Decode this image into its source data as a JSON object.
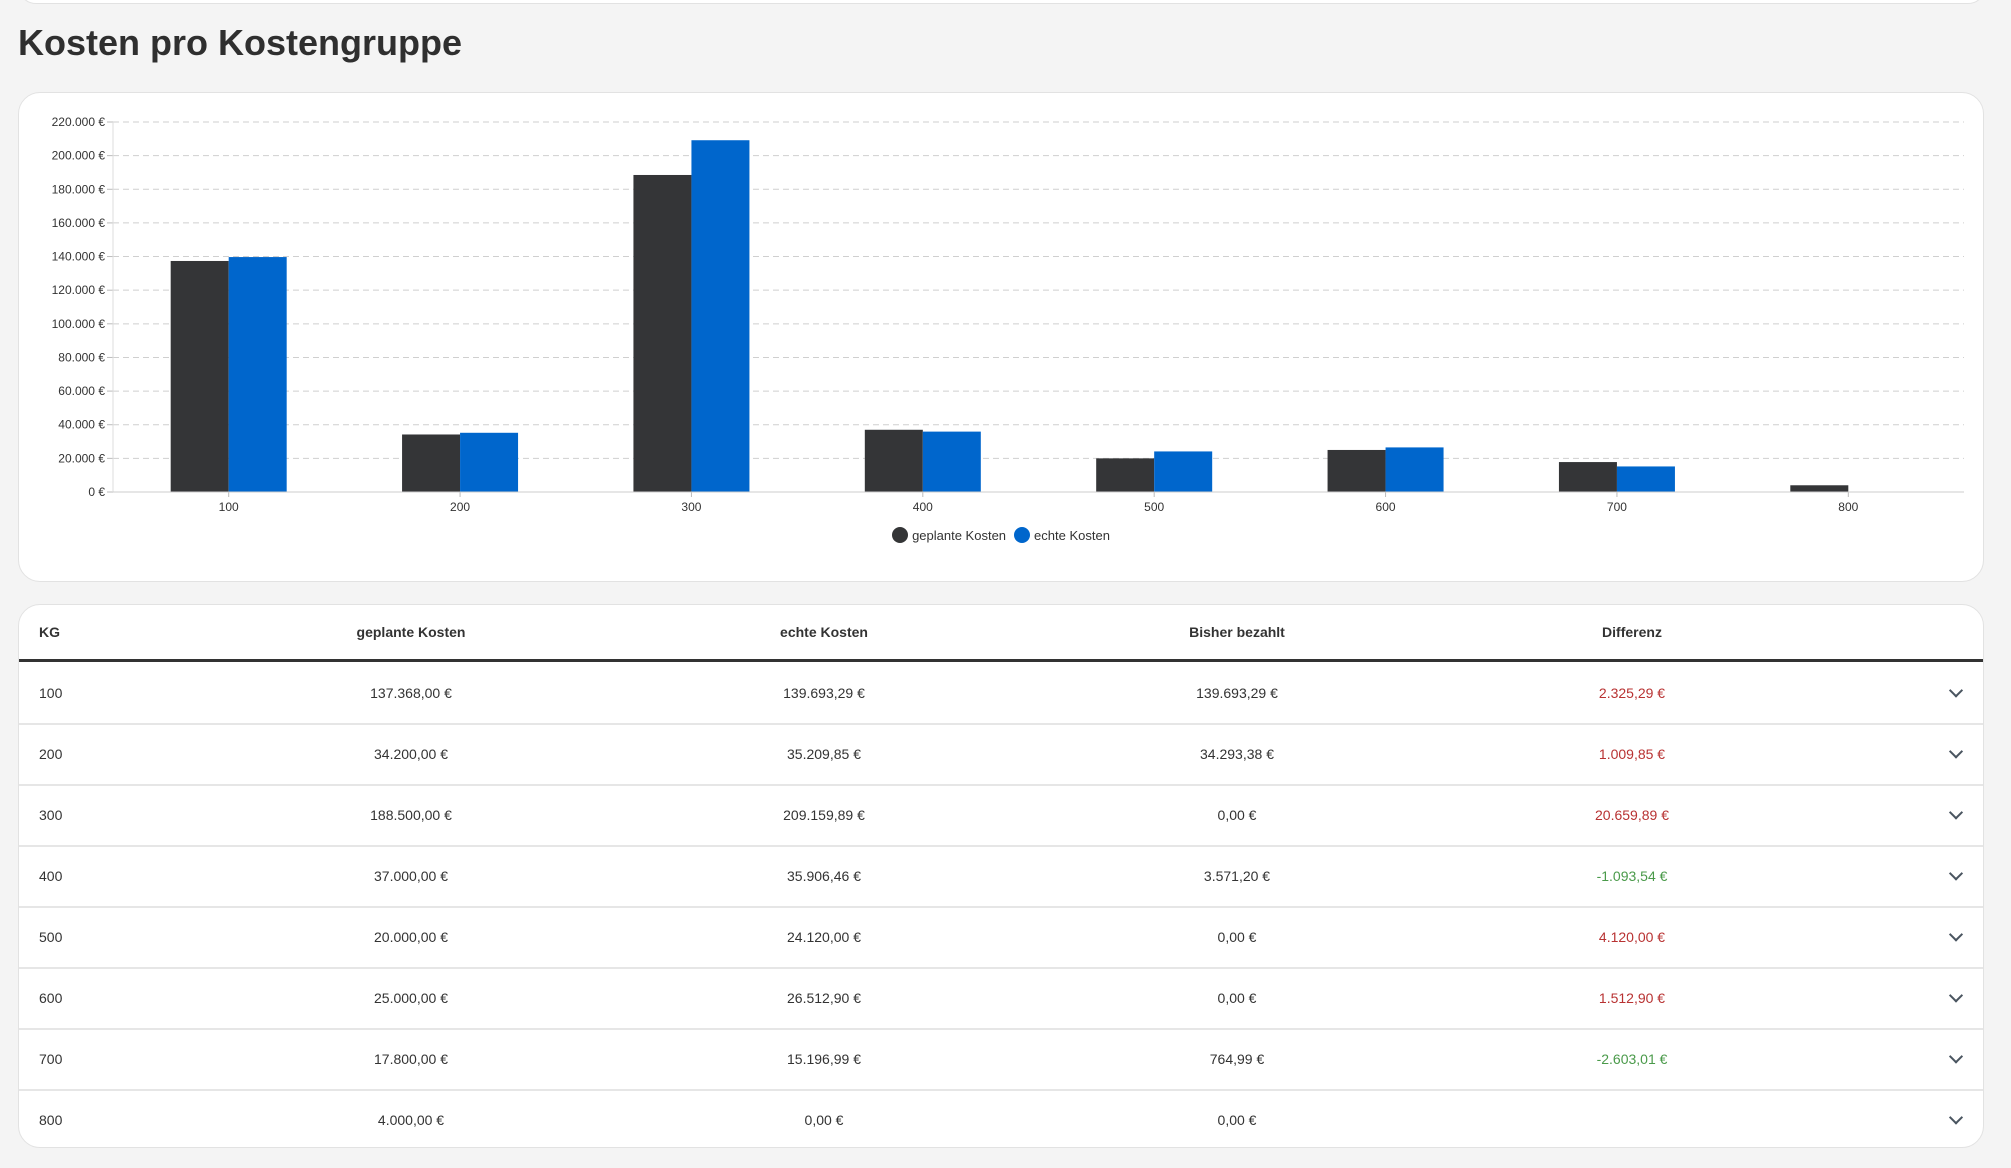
{
  "title": "Kosten pro Kostengruppe",
  "chart_data": {
    "type": "bar",
    "title": "",
    "xlabel": "",
    "ylabel": "",
    "categories": [
      "100",
      "200",
      "300",
      "400",
      "500",
      "600",
      "700",
      "800"
    ],
    "series": [
      {
        "name": "geplante Kosten",
        "color": "#343537",
        "values": [
          137368,
          34200,
          188500,
          37000,
          20000,
          25000,
          17800,
          4000
        ]
      },
      {
        "name": "echte Kosten",
        "color": "#0066cc",
        "values": [
          139693.29,
          35209.85,
          209159.89,
          35906.46,
          24120,
          26512.9,
          15196.99,
          0
        ]
      }
    ],
    "ylim": [
      0,
      220000
    ],
    "yticks": [
      0,
      20000,
      40000,
      60000,
      80000,
      100000,
      120000,
      140000,
      160000,
      180000,
      200000,
      220000
    ],
    "ytick_labels": [
      "0 €",
      "20.000 €",
      "40.000 €",
      "60.000 €",
      "80.000 €",
      "100.000 €",
      "120.000 €",
      "140.000 €",
      "160.000 €",
      "180.000 €",
      "200.000 €",
      "220.000 €"
    ],
    "grid": true,
    "legend": "bottom-center"
  },
  "table": {
    "headers": [
      "KG",
      "geplante Kosten",
      "echte Kosten",
      "Bisher bezahlt",
      "Differenz"
    ],
    "rows": [
      {
        "kg": "100",
        "geplant": "137.368,00 €",
        "echt": "139.693,29 €",
        "bezahlt": "139.693,29 €",
        "differenz": "2.325,29 €",
        "sign": "pos"
      },
      {
        "kg": "200",
        "geplant": "34.200,00 €",
        "echt": "35.209,85 €",
        "bezahlt": "34.293,38 €",
        "differenz": "1.009,85 €",
        "sign": "pos"
      },
      {
        "kg": "300",
        "geplant": "188.500,00 €",
        "echt": "209.159,89 €",
        "bezahlt": "0,00 €",
        "differenz": "20.659,89 €",
        "sign": "pos"
      },
      {
        "kg": "400",
        "geplant": "37.000,00 €",
        "echt": "35.906,46 €",
        "bezahlt": "3.571,20 €",
        "differenz": "-1.093,54 €",
        "sign": "neg"
      },
      {
        "kg": "500",
        "geplant": "20.000,00 €",
        "echt": "24.120,00 €",
        "bezahlt": "0,00 €",
        "differenz": "4.120,00 €",
        "sign": "pos"
      },
      {
        "kg": "600",
        "geplant": "25.000,00 €",
        "echt": "26.512,90 €",
        "bezahlt": "0,00 €",
        "differenz": "1.512,90 €",
        "sign": "pos"
      },
      {
        "kg": "700",
        "geplant": "17.800,00 €",
        "echt": "15.196,99 €",
        "bezahlt": "764,99 €",
        "differenz": "-2.603,01 €",
        "sign": "neg"
      },
      {
        "kg": "800",
        "geplant": "4.000,00 €",
        "echt": "0,00 €",
        "bezahlt": "0,00 €",
        "differenz": "",
        "sign": "pos"
      }
    ]
  }
}
